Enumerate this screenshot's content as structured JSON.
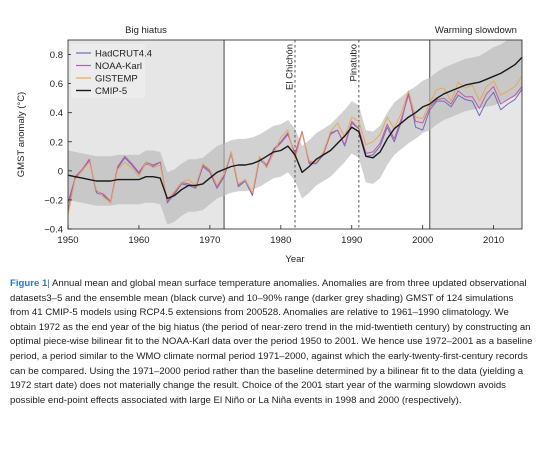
{
  "chart_data": {
    "type": "line",
    "title": "",
    "xlabel": "Year",
    "ylabel": "GMST anomaly (°C)",
    "xlim": [
      1950,
      2014
    ],
    "ylim": [
      -0.4,
      0.9
    ],
    "xticks": [
      1950,
      1960,
      1970,
      1980,
      1990,
      2000,
      2010
    ],
    "yticks": [
      -0.4,
      -0.2,
      0.0,
      0.2,
      0.4,
      0.6,
      0.8
    ],
    "ytick_labels": [
      "−0.4",
      "−0.2",
      "0",
      "0.2",
      "0.4",
      "0.6",
      "0.8"
    ],
    "grid": false,
    "legend_position": "top-left",
    "shaded_periods": [
      {
        "label": "Big hiatus",
        "start": 1950,
        "end": 1972
      },
      {
        "label": "Warming slowdown",
        "start": 2001,
        "end": 2014
      }
    ],
    "eruptions": [
      {
        "label": "El Chichón",
        "year": 1982
      },
      {
        "label": "Pinatubo",
        "year": 1991
      }
    ],
    "x": [
      1950,
      1951,
      1952,
      1953,
      1954,
      1955,
      1956,
      1957,
      1958,
      1959,
      1960,
      1961,
      1962,
      1963,
      1964,
      1965,
      1966,
      1967,
      1968,
      1969,
      1970,
      1971,
      1972,
      1973,
      1974,
      1975,
      1976,
      1977,
      1978,
      1979,
      1980,
      1981,
      1982,
      1983,
      1984,
      1985,
      1986,
      1987,
      1988,
      1989,
      1990,
      1991,
      1992,
      1993,
      1994,
      1995,
      1996,
      1997,
      1998,
      1999,
      2000,
      2001,
      2002,
      2003,
      2004,
      2005,
      2006,
      2007,
      2008,
      2009,
      2010,
      2011,
      2012,
      2013,
      2014
    ],
    "series": [
      {
        "name": "HadCRUT4.4",
        "color": "#6e6eb8",
        "values": [
          -0.22,
          -0.05,
          0.0,
          0.07,
          -0.15,
          -0.17,
          -0.22,
          0.02,
          0.09,
          0.04,
          -0.02,
          0.05,
          0.03,
          0.06,
          -0.22,
          -0.16,
          -0.09,
          -0.1,
          -0.12,
          0.03,
          -0.01,
          -0.12,
          -0.04,
          0.12,
          -0.11,
          -0.07,
          -0.17,
          0.08,
          0.03,
          0.15,
          0.2,
          0.26,
          0.1,
          0.27,
          0.05,
          0.05,
          0.11,
          0.26,
          0.28,
          0.17,
          0.33,
          0.29,
          0.1,
          0.11,
          0.17,
          0.3,
          0.2,
          0.34,
          0.54,
          0.3,
          0.28,
          0.42,
          0.48,
          0.48,
          0.44,
          0.52,
          0.49,
          0.48,
          0.38,
          0.48,
          0.54,
          0.42,
          0.46,
          0.49,
          0.56
        ]
      },
      {
        "name": "NOAA-Karl",
        "color": "#c45aa8",
        "values": [
          -0.27,
          -0.04,
          0.01,
          0.08,
          -0.14,
          -0.16,
          -0.21,
          0.03,
          0.1,
          0.05,
          -0.01,
          0.06,
          0.04,
          0.06,
          -0.21,
          -0.15,
          -0.08,
          -0.09,
          -0.11,
          0.04,
          0.0,
          -0.11,
          -0.03,
          0.13,
          -0.1,
          -0.06,
          -0.16,
          0.09,
          0.04,
          0.14,
          0.19,
          0.25,
          0.12,
          0.27,
          0.06,
          0.06,
          0.12,
          0.25,
          0.28,
          0.18,
          0.34,
          0.29,
          0.12,
          0.13,
          0.19,
          0.32,
          0.22,
          0.36,
          0.52,
          0.34,
          0.33,
          0.44,
          0.49,
          0.5,
          0.46,
          0.55,
          0.51,
          0.51,
          0.43,
          0.53,
          0.58,
          0.46,
          0.49,
          0.52,
          0.58
        ]
      },
      {
        "name": "GISTEMP",
        "color": "#e8a85a",
        "values": [
          -0.3,
          -0.06,
          0.0,
          0.06,
          -0.13,
          -0.18,
          -0.22,
          0.01,
          0.06,
          0.02,
          -0.04,
          0.06,
          0.02,
          0.04,
          -0.2,
          -0.14,
          -0.08,
          -0.06,
          -0.1,
          0.05,
          0.01,
          -0.1,
          -0.02,
          0.13,
          -0.09,
          -0.06,
          -0.15,
          0.1,
          0.02,
          0.12,
          0.23,
          0.28,
          0.08,
          0.26,
          0.07,
          0.06,
          0.13,
          0.27,
          0.33,
          0.23,
          0.37,
          0.34,
          0.18,
          0.2,
          0.25,
          0.37,
          0.29,
          0.4,
          0.55,
          0.37,
          0.36,
          0.47,
          0.56,
          0.57,
          0.48,
          0.61,
          0.57,
          0.59,
          0.48,
          0.58,
          0.62,
          0.52,
          0.55,
          0.58,
          0.65
        ]
      },
      {
        "name": "CMIP-5",
        "color": "#1a1a1a",
        "values": [
          -0.03,
          -0.04,
          -0.05,
          -0.06,
          -0.07,
          -0.07,
          -0.07,
          -0.06,
          -0.06,
          -0.06,
          -0.06,
          -0.04,
          -0.04,
          -0.05,
          -0.19,
          -0.17,
          -0.13,
          -0.1,
          -0.1,
          -0.09,
          -0.05,
          -0.01,
          0.01,
          0.03,
          0.04,
          0.04,
          0.05,
          0.07,
          0.1,
          0.13,
          0.14,
          0.17,
          0.11,
          -0.01,
          0.03,
          0.08,
          0.11,
          0.14,
          0.19,
          0.24,
          0.3,
          0.27,
          0.1,
          0.09,
          0.13,
          0.22,
          0.29,
          0.33,
          0.37,
          0.4,
          0.44,
          0.46,
          0.5,
          0.53,
          0.55,
          0.57,
          0.59,
          0.6,
          0.61,
          0.63,
          0.65,
          0.67,
          0.7,
          0.73,
          0.78
        ]
      }
    ],
    "band": {
      "name": "10–90% range",
      "lower": [
        -0.2,
        -0.21,
        -0.22,
        -0.23,
        -0.24,
        -0.24,
        -0.24,
        -0.23,
        -0.23,
        -0.23,
        -0.23,
        -0.22,
        -0.22,
        -0.23,
        -0.37,
        -0.35,
        -0.31,
        -0.28,
        -0.28,
        -0.27,
        -0.23,
        -0.19,
        -0.17,
        -0.15,
        -0.14,
        -0.14,
        -0.13,
        -0.11,
        -0.08,
        -0.05,
        -0.04,
        -0.01,
        -0.07,
        -0.19,
        -0.15,
        -0.1,
        -0.07,
        -0.04,
        0.01,
        0.06,
        0.12,
        0.09,
        -0.08,
        -0.09,
        -0.05,
        0.04,
        0.11,
        0.15,
        0.19,
        0.22,
        0.26,
        0.28,
        0.32,
        0.35,
        0.37,
        0.39,
        0.41,
        0.42,
        0.43,
        0.44,
        0.45,
        0.47,
        0.49,
        0.51,
        0.55
      ],
      "upper": [
        0.14,
        0.13,
        0.12,
        0.11,
        0.1,
        0.1,
        0.1,
        0.11,
        0.11,
        0.11,
        0.11,
        0.14,
        0.14,
        0.13,
        -0.01,
        0.01,
        0.05,
        0.08,
        0.08,
        0.09,
        0.13,
        0.17,
        0.19,
        0.21,
        0.22,
        0.22,
        0.23,
        0.25,
        0.28,
        0.31,
        0.32,
        0.35,
        0.29,
        0.17,
        0.21,
        0.26,
        0.29,
        0.32,
        0.37,
        0.42,
        0.48,
        0.45,
        0.28,
        0.27,
        0.31,
        0.4,
        0.47,
        0.51,
        0.55,
        0.58,
        0.62,
        0.64,
        0.68,
        0.71,
        0.73,
        0.75,
        0.77,
        0.78,
        0.79,
        0.82,
        0.85,
        0.87,
        0.9,
        0.93,
        0.99
      ]
    }
  },
  "caption": {
    "label": "Figure 1",
    "separator": "|",
    "text": "Annual mean and global mean surface temperature anomalies. Anomalies are from three updated observational datasets3–5 and the ensemble mean (black curve) and 10–90% range (darker grey shading) GMST of 124 simulations from 41 CMIP-5 models using RCP4.5 extensions from 200528. Anomalies are relative to 1961–1990 climatology. We obtain 1972 as the end year of the big hiatus (the period of near-zero trend in the mid-twentieth century) by constructing an optimal piece-wise bilinear fit to the NOAA-Karl data over the period 1950 to 2001. We hence use 1972–2001 as a baseline period, a period similar to the WMO climate normal period 1971–2000, against which the early-twenty-first-century records can be compared. Using the 1971–2000 period rather than the baseline determined by a bilinear fit to the data (yielding a 1972 start date) does not materially change the result. Choice of the 2001 start year of the warming slowdown avoids possible end-point effects associated with large El Niño or La Niña events in 1998 and 2000 (respectively)."
  }
}
